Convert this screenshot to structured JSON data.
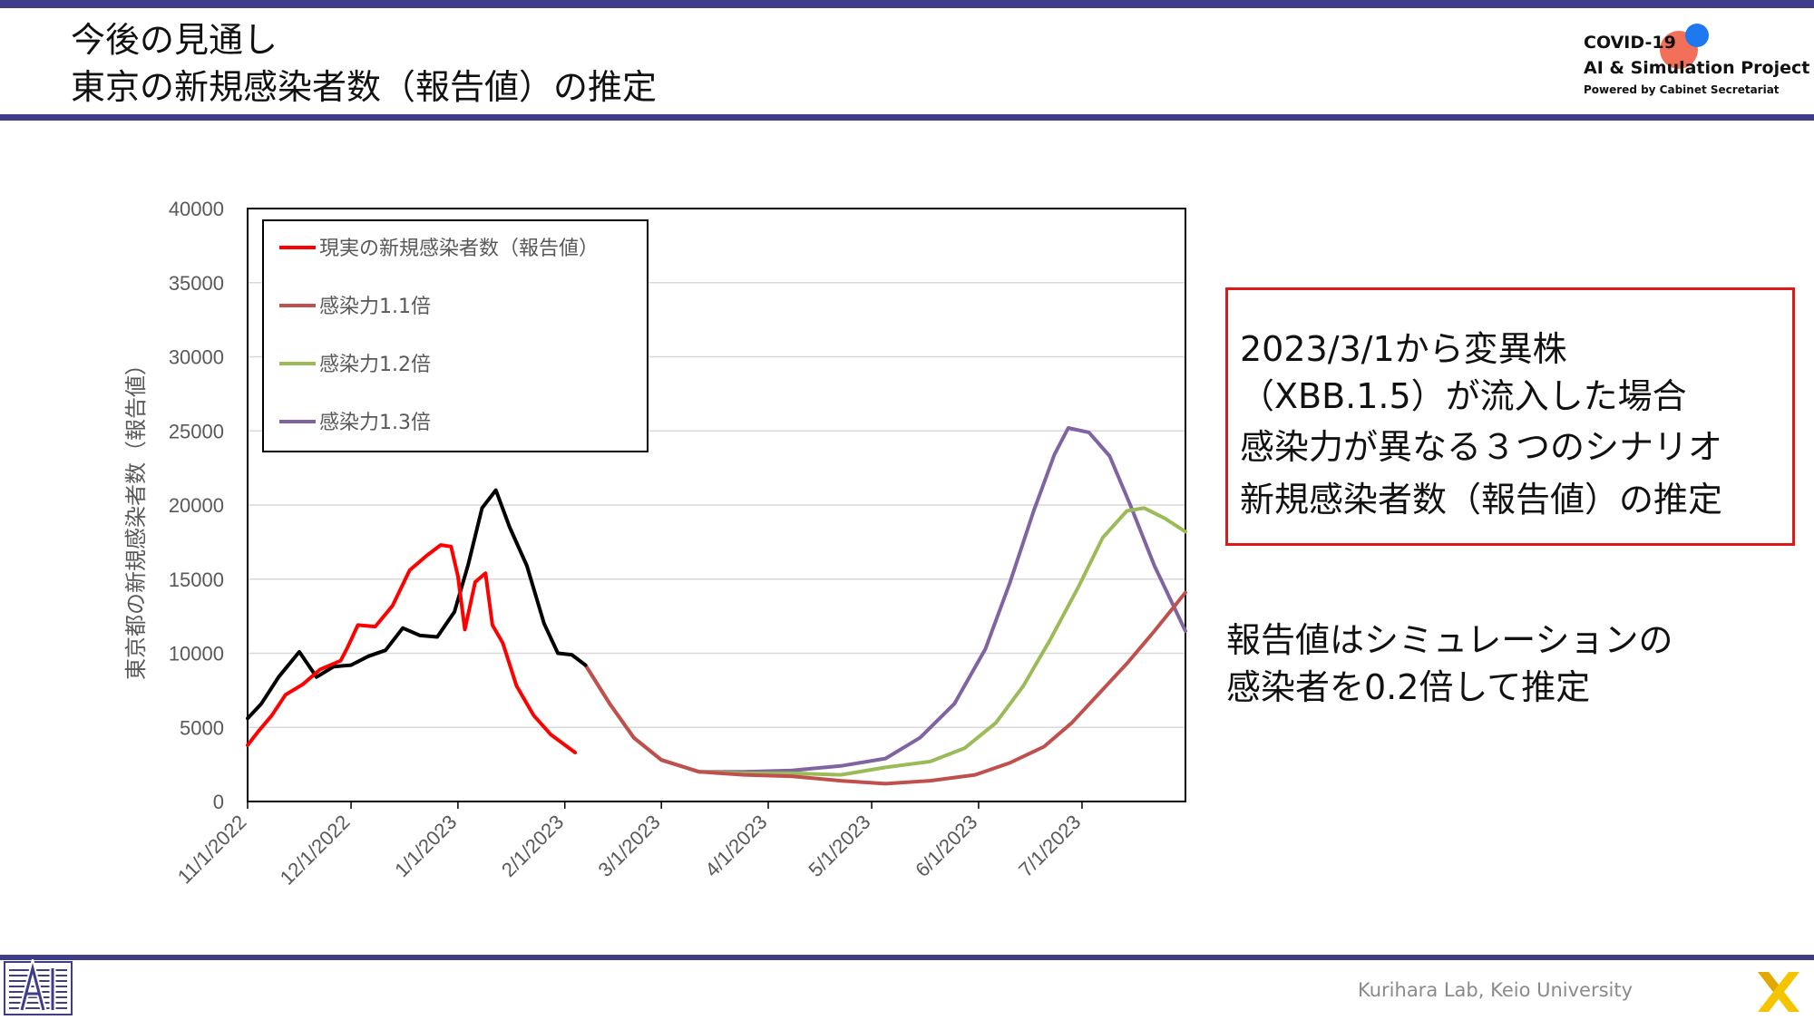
{
  "header": {
    "title_line1": "今後の見通し",
    "title_line2": "東京の新規感染者数（報告値）の推定",
    "logo": {
      "line1": "COVID-19",
      "line2": "AI & Simulation Project",
      "line3": "Powered by Cabinet Secretariat"
    }
  },
  "colors": {
    "theme_bar": "#3f3d8a",
    "actual": "#ff0000",
    "simulated_past": "#000000",
    "x1_1": "#c0504d",
    "x1_2": "#9bbb59",
    "x1_3": "#8064a2",
    "box_border": "#e01818"
  },
  "scenario_box": {
    "line1": "2023/3/1から変異株",
    "line2": "（XBB.1.5）が流入した場合",
    "line3": "感染力が異なる３つのシナリオ",
    "line4": "新規感染者数（報告値）の推定"
  },
  "note": {
    "line1": "報告値はシミュレーションの",
    "line2": "感染者を0.2倍して推定"
  },
  "footer": {
    "credit": "Kurihara Lab, Keio University"
  },
  "chart_data": {
    "type": "line",
    "title": "",
    "xlabel": "",
    "ylabel": "東京都の新規感染者数（報告値）",
    "ylim": [
      0,
      40000
    ],
    "yticks": [
      0,
      5000,
      10000,
      15000,
      20000,
      25000,
      30000,
      35000,
      40000
    ],
    "xlim": [
      "2022-11-01",
      "2023-07-31"
    ],
    "xticks": [
      "11/1/2022",
      "12/1/2022",
      "1/1/2023",
      "2/1/2023",
      "3/1/2023",
      "4/1/2023",
      "5/1/2023",
      "6/1/2023",
      "7/1/2023"
    ],
    "xtick_dates": [
      "2022-11-01",
      "2022-12-01",
      "2023-01-01",
      "2023-02-01",
      "2023-03-01",
      "2023-04-01",
      "2023-05-01",
      "2023-06-01",
      "2023-07-01"
    ],
    "grid": "horizontal",
    "legend_position": "top-left",
    "series": [
      {
        "name": "現実の新規感染者数（報告値）",
        "color": "#ff0000",
        "in_legend": true,
        "points": [
          [
            "2022-11-01",
            3800
          ],
          [
            "2022-11-04",
            4700
          ],
          [
            "2022-11-08",
            5800
          ],
          [
            "2022-11-12",
            7200
          ],
          [
            "2022-11-17",
            7900
          ],
          [
            "2022-11-22",
            8900
          ],
          [
            "2022-11-28",
            9500
          ],
          [
            "2022-11-30",
            10400
          ],
          [
            "2022-12-03",
            11900
          ],
          [
            "2022-12-08",
            11800
          ],
          [
            "2022-12-13",
            13200
          ],
          [
            "2022-12-18",
            15600
          ],
          [
            "2022-12-23",
            16600
          ],
          [
            "2022-12-27",
            17300
          ],
          [
            "2022-12-30",
            17200
          ],
          [
            "2023-01-01",
            15200
          ],
          [
            "2023-01-03",
            11600
          ],
          [
            "2023-01-06",
            14800
          ],
          [
            "2023-01-09",
            15400
          ],
          [
            "2023-01-11",
            11900
          ],
          [
            "2023-01-14",
            10700
          ],
          [
            "2023-01-18",
            7800
          ],
          [
            "2023-01-23",
            5800
          ],
          [
            "2023-01-28",
            4500
          ],
          [
            "2023-02-04",
            3300
          ]
        ]
      },
      {
        "name": "",
        "color": "#000000",
        "in_legend": false,
        "points": [
          [
            "2022-11-01",
            5600
          ],
          [
            "2022-11-05",
            6600
          ],
          [
            "2022-11-10",
            8400
          ],
          [
            "2022-11-16",
            10100
          ],
          [
            "2022-11-21",
            8400
          ],
          [
            "2022-11-26",
            9100
          ],
          [
            "2022-12-01",
            9200
          ],
          [
            "2022-12-06",
            9800
          ],
          [
            "2022-12-11",
            10200
          ],
          [
            "2022-12-16",
            11700
          ],
          [
            "2022-12-21",
            11200
          ],
          [
            "2022-12-26",
            11100
          ],
          [
            "2022-12-31",
            12800
          ],
          [
            "2023-01-04",
            16000
          ],
          [
            "2023-01-08",
            19800
          ],
          [
            "2023-01-12",
            21000
          ],
          [
            "2023-01-16",
            18500
          ],
          [
            "2023-01-21",
            15900
          ],
          [
            "2023-01-26",
            12000
          ],
          [
            "2023-01-30",
            10000
          ],
          [
            "2023-02-03",
            9900
          ],
          [
            "2023-02-07",
            9200
          ]
        ]
      },
      {
        "name": "感染力1.1倍",
        "color": "#c0504d",
        "in_legend": true,
        "points": [
          [
            "2023-02-07",
            9200
          ],
          [
            "2023-02-14",
            6600
          ],
          [
            "2023-02-21",
            4300
          ],
          [
            "2023-03-01",
            2800
          ],
          [
            "2023-03-12",
            2000
          ],
          [
            "2023-03-25",
            1800
          ],
          [
            "2023-04-08",
            1700
          ],
          [
            "2023-04-22",
            1400
          ],
          [
            "2023-05-05",
            1200
          ],
          [
            "2023-05-18",
            1400
          ],
          [
            "2023-05-31",
            1800
          ],
          [
            "2023-06-10",
            2600
          ],
          [
            "2023-06-20",
            3700
          ],
          [
            "2023-06-28",
            5300
          ],
          [
            "2023-07-06",
            7300
          ],
          [
            "2023-07-14",
            9300
          ],
          [
            "2023-07-22",
            11500
          ],
          [
            "2023-07-31",
            14100
          ]
        ]
      },
      {
        "name": "感染力1.2倍",
        "color": "#9bbb59",
        "in_legend": true,
        "points": [
          [
            "2023-02-07",
            9200
          ],
          [
            "2023-02-14",
            6600
          ],
          [
            "2023-02-21",
            4300
          ],
          [
            "2023-03-01",
            2800
          ],
          [
            "2023-03-12",
            2000
          ],
          [
            "2023-03-25",
            1900
          ],
          [
            "2023-04-08",
            1900
          ],
          [
            "2023-04-22",
            1800
          ],
          [
            "2023-05-05",
            2300
          ],
          [
            "2023-05-18",
            2700
          ],
          [
            "2023-05-28",
            3600
          ],
          [
            "2023-06-06",
            5300
          ],
          [
            "2023-06-14",
            7800
          ],
          [
            "2023-06-22",
            11000
          ],
          [
            "2023-06-30",
            14500
          ],
          [
            "2023-07-07",
            17800
          ],
          [
            "2023-07-14",
            19600
          ],
          [
            "2023-07-19",
            19800
          ],
          [
            "2023-07-25",
            19100
          ],
          [
            "2023-07-31",
            18200
          ]
        ]
      },
      {
        "name": "感染力1.3倍",
        "color": "#8064a2",
        "in_legend": true,
        "points": [
          [
            "2023-02-07",
            9200
          ],
          [
            "2023-02-14",
            6600
          ],
          [
            "2023-02-21",
            4300
          ],
          [
            "2023-03-01",
            2800
          ],
          [
            "2023-03-12",
            2000
          ],
          [
            "2023-03-25",
            2000
          ],
          [
            "2023-04-08",
            2100
          ],
          [
            "2023-04-22",
            2400
          ],
          [
            "2023-05-05",
            2900
          ],
          [
            "2023-05-15",
            4300
          ],
          [
            "2023-05-25",
            6600
          ],
          [
            "2023-06-03",
            10300
          ],
          [
            "2023-06-10",
            14700
          ],
          [
            "2023-06-17",
            19600
          ],
          [
            "2023-06-23",
            23400
          ],
          [
            "2023-06-27",
            25200
          ],
          [
            "2023-07-03",
            24900
          ],
          [
            "2023-07-09",
            23300
          ],
          [
            "2023-07-15",
            20000
          ],
          [
            "2023-07-22",
            15900
          ],
          [
            "2023-07-31",
            11500
          ]
        ]
      }
    ]
  }
}
